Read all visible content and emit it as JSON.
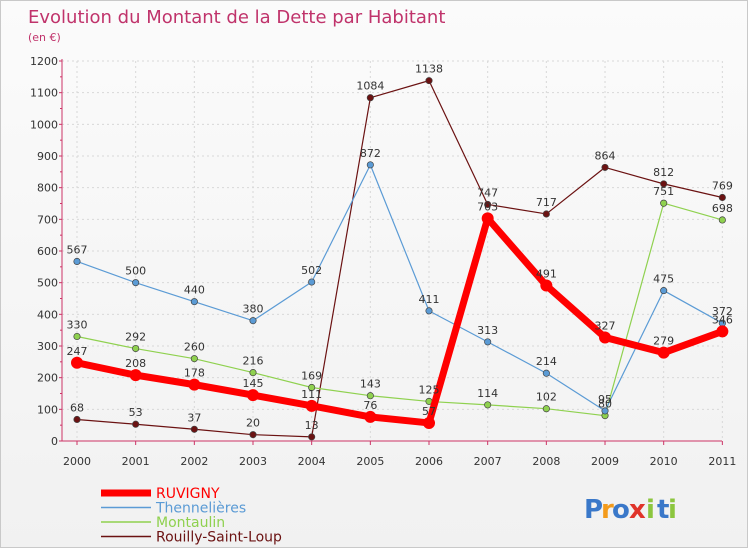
{
  "chart_data": {
    "type": "line",
    "title": "Evolution du Montant de la Dette par Habitant",
    "subtitle": "(en €)",
    "categories": [
      "2000",
      "2001",
      "2002",
      "2003",
      "2004",
      "2005",
      "2006",
      "2007",
      "2008",
      "2009",
      "2010",
      "2011"
    ],
    "ylim": [
      0,
      1200
    ],
    "yticks": [
      0,
      100,
      200,
      300,
      400,
      500,
      600,
      700,
      800,
      900,
      1000,
      1100,
      1200
    ],
    "grid": true,
    "legend_position": "bottom-left",
    "series": [
      {
        "name": "Rouilly-Saint-Loup",
        "color": "#6b1212",
        "values": [
          68,
          53,
          37,
          20,
          13,
          1084,
          1138,
          747,
          717,
          864,
          812,
          769
        ]
      },
      {
        "name": "Montaulin",
        "color": "#8fd14f",
        "values": [
          330,
          292,
          260,
          216,
          169,
          143,
          125,
          114,
          102,
          80,
          751,
          698
        ]
      },
      {
        "name": "Thennelières",
        "color": "#5b9bd5",
        "values": [
          567,
          500,
          440,
          380,
          502,
          872,
          411,
          313,
          214,
          95,
          475,
          372
        ]
      },
      {
        "name": "RUVIGNY",
        "color": "#ff0000",
        "values": [
          247,
          208,
          178,
          145,
          111,
          76,
          57,
          703,
          491,
          327,
          279,
          346
        ]
      }
    ],
    "legend_order": [
      "RUVIGNY",
      "Thennelières",
      "Montaulin",
      "Rouilly-Saint-Loup"
    ]
  },
  "logo": {
    "letters": [
      "P",
      "r",
      "o",
      "x",
      "i",
      "t",
      "i"
    ],
    "colors": [
      "#3a78c9",
      "#f39b1c",
      "#3a78c9",
      "#e0342a",
      "#8cc63f",
      "#3a78c9",
      "#8cc63f"
    ]
  }
}
